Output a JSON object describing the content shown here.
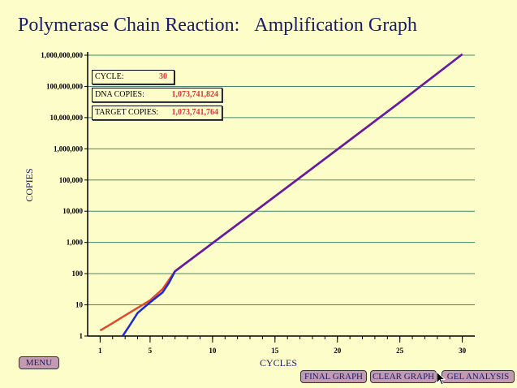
{
  "header": {
    "title_left": "Polymerase Chain Reaction:",
    "title_right": "Amplification Graph"
  },
  "info": {
    "cycle_label": "CYCLE:",
    "cycle_value": "30",
    "dna_label": "DNA COPIES:",
    "dna_value": "1,073,741,824",
    "target_label": "TARGET COPIES:",
    "target_value": "1,073,741,764"
  },
  "buttons": {
    "menu": "MENU",
    "final_graph": "FINAL GRAPH",
    "clear_graph": "CLEAR GRAPH",
    "gel_analysis": "GEL ANALYSIS"
  },
  "colors": {
    "background": "#fdfdc9",
    "title": "#1a1a6e",
    "grid": "#3f8a6a",
    "dna_line": "#e04a2a",
    "target_line": "#1a2ad8",
    "overlap_line": "#6a1aa0",
    "button": "#c49ab0"
  },
  "chart_data": {
    "type": "line",
    "xlabel": "CYCLES",
    "ylabel": "COPIES",
    "x_ticks": [
      1,
      5,
      10,
      15,
      20,
      25,
      30
    ],
    "y_tick_labels": [
      "1",
      "10",
      "100",
      "1,000",
      "10,000",
      "100,000",
      "1,000,000",
      "10,000,000",
      "100,000,000",
      "1,000,000,000"
    ],
    "ylim": [
      1,
      1000000000
    ],
    "xlim": [
      0,
      31
    ],
    "yscale": "log",
    "grid": true,
    "series": [
      {
        "x": [
          1,
          2,
          3,
          4,
          5,
          6,
          7,
          10,
          15,
          20,
          25,
          30
        ],
        "values": [
          1.5,
          2.6,
          4.6,
          8,
          14,
          32,
          120,
          950,
          30000,
          960000,
          31000000,
          1073741824
        ]
      },
      {
        "x": [
          2.8,
          3.3,
          4,
          5,
          6,
          6.5,
          7,
          10,
          15,
          20,
          25,
          30
        ],
        "values": [
          1,
          2,
          5.5,
          12,
          25,
          50,
          120,
          950,
          30000,
          960000,
          31000000,
          1073741764
        ]
      }
    ]
  }
}
